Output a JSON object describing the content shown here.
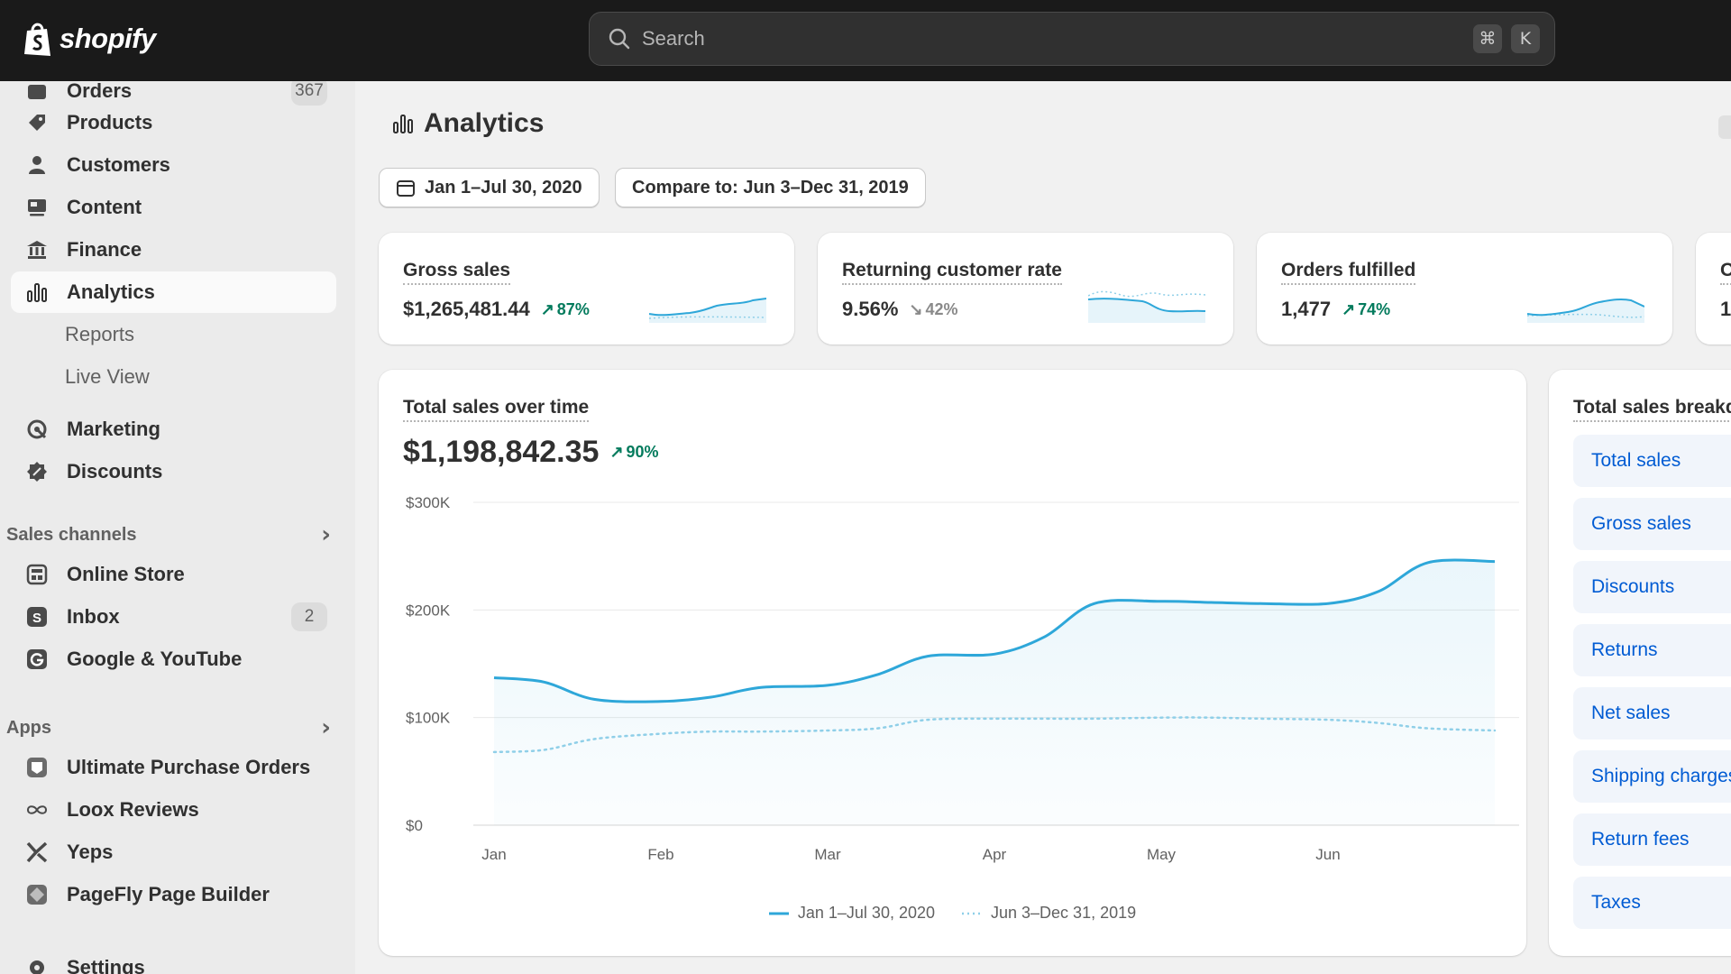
{
  "brand": {
    "name": "shopify"
  },
  "search": {
    "placeholder": "Search",
    "shortcut_mod": "⌘",
    "shortcut_key": "K"
  },
  "sidebar": {
    "items": [
      {
        "label": "Orders",
        "badge": "367"
      },
      {
        "label": "Products"
      },
      {
        "label": "Customers"
      },
      {
        "label": "Content"
      },
      {
        "label": "Finance"
      },
      {
        "label": "Analytics"
      },
      {
        "label": "Marketing"
      },
      {
        "label": "Discounts"
      }
    ],
    "analytics_sub": [
      "Reports",
      "Live View"
    ],
    "sales_channels_heading": "Sales channels",
    "sales_channels": [
      {
        "label": "Online Store"
      },
      {
        "label": "Inbox",
        "badge": "2"
      },
      {
        "label": "Google & YouTube"
      }
    ],
    "apps_heading": "Apps",
    "apps": [
      {
        "label": "Ultimate Purchase Orders"
      },
      {
        "label": "Loox Reviews"
      },
      {
        "label": "Yeps"
      },
      {
        "label": "PageFly Page Builder"
      }
    ],
    "settings_label": "Settings"
  },
  "page": {
    "title": "Analytics",
    "date_range": "Jan 1–Jul 30, 2020",
    "compare": "Compare to: Jun 3–Dec 31, 2019"
  },
  "metrics": [
    {
      "title": "Gross sales",
      "value": "$1,265,481.44",
      "delta": "87%",
      "direction": "up"
    },
    {
      "title": "Returning customer rate",
      "value": "9.56%",
      "delta": "42%",
      "direction": "down"
    },
    {
      "title": "Orders fulfilled",
      "value": "1,477",
      "delta": "74%",
      "direction": "up"
    },
    {
      "title": "O",
      "value": "1,"
    }
  ],
  "chart_data": {
    "type": "line",
    "title": "Total sales over time",
    "total": "$1,198,842.35",
    "delta": "90%",
    "categories": [
      "Jan",
      "Feb",
      "Mar",
      "Apr",
      "May",
      "Jun"
    ],
    "y_ticks": [
      "$0",
      "$100K",
      "$200K",
      "$300K"
    ],
    "ylim": [
      0,
      300000
    ],
    "series": [
      {
        "name": "Jan 1–Jul 30, 2020",
        "x": [
          0,
          0.3,
          0.6,
          1.0,
          1.3,
          1.6,
          2.0,
          2.3,
          2.6,
          3.0,
          3.3,
          3.6,
          4.0,
          4.3,
          4.6,
          5.0,
          5.3,
          5.6,
          6.0
        ],
        "values": [
          137000,
          133000,
          117000,
          115000,
          119000,
          128000,
          130000,
          140000,
          157000,
          159000,
          175000,
          206000,
          208000,
          207000,
          206000,
          206000,
          217000,
          244000,
          245000
        ]
      },
      {
        "name": "Jun 3–Dec 31, 2019",
        "x": [
          0,
          0.3,
          0.6,
          1.0,
          1.3,
          1.6,
          2.0,
          2.3,
          2.6,
          3.0,
          3.3,
          3.6,
          4.0,
          4.3,
          4.6,
          5.0,
          5.3,
          5.6,
          6.0
        ],
        "values": [
          68000,
          70000,
          80000,
          85000,
          87000,
          87000,
          88000,
          90000,
          98000,
          99000,
          99000,
          99000,
          100000,
          100000,
          99000,
          98000,
          95000,
          90000,
          88000
        ]
      }
    ],
    "legend": [
      "Jan 1–Jul 30, 2020",
      "Jun 3–Dec 31, 2019"
    ]
  },
  "breakdown": {
    "title": "Total sales breakdown",
    "items": [
      "Total sales",
      "Gross sales",
      "Discounts",
      "Returns",
      "Net sales",
      "Shipping charges",
      "Return fees",
      "Taxes"
    ]
  },
  "colors": {
    "accent": "#2ea7d9",
    "comparison": "#8fcfe8",
    "link": "#005bd3",
    "positive": "#047b5d"
  }
}
